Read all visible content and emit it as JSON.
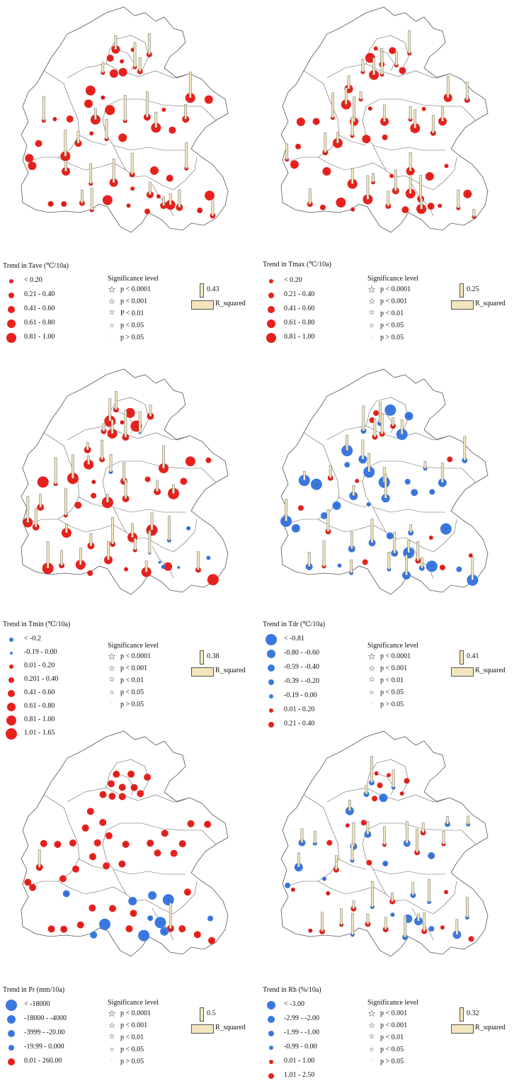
{
  "colors": {
    "warm": "#e8211d",
    "cool": "#3a78e0",
    "bar_fill": "#f3e6bd"
  },
  "panels": [
    {
      "id": "tave",
      "legend_title": "Trend in Tave (℃/10a)",
      "classes": [
        {
          "label": "< 0.20",
          "color": "warm",
          "r": 3
        },
        {
          "label": "0.21 - 0.40",
          "color": "warm",
          "r": 4
        },
        {
          "label": "0.41 - 0.60",
          "color": "warm",
          "r": 5
        },
        {
          "label": "0.61 - 0.80",
          "color": "warm",
          "r": 6
        },
        {
          "label": "0.81 - 1.00",
          "color": "warm",
          "r": 7
        }
      ],
      "significance_title": "Significance level",
      "significance": [
        "p < 0.0001",
        "p < 0.001",
        "P < 0.01",
        "p < 0.05",
        "p > 0.05"
      ],
      "r2_value": "0.43",
      "r2_label": "R_squared"
    },
    {
      "id": "tmax",
      "legend_title": "Trend in Tmax (℃/10a)",
      "classes": [
        {
          "label": "< 0.20",
          "color": "warm",
          "r": 3
        },
        {
          "label": "0.21 - 0.40",
          "color": "warm",
          "r": 4
        },
        {
          "label": "0.41 - 0.60",
          "color": "warm",
          "r": 5
        },
        {
          "label": "0.61 - 0.80",
          "color": "warm",
          "r": 6
        },
        {
          "label": "0.81 - 1.00",
          "color": "warm",
          "r": 7
        }
      ],
      "significance_title": "Significance level",
      "significance": [
        "p < 0.0001",
        "p < 0.001",
        "p < 0.01",
        "p < 0.05",
        "p > 0.05"
      ],
      "r2_value": "0.25",
      "r2_label": "R_squared"
    },
    {
      "id": "tmin",
      "legend_title": "Trend in Tmin (℃/10a)",
      "classes": [
        {
          "label": "< -0.2",
          "color": "cool",
          "r": 3
        },
        {
          "label": "-0.19 - 0.00",
          "color": "cool",
          "r": 2
        },
        {
          "label": "0.01 - 0.20",
          "color": "warm",
          "r": 3
        },
        {
          "label": "0.201 - 0.40",
          "color": "warm",
          "r": 4
        },
        {
          "label": "0.41 - 0.60",
          "color": "warm",
          "r": 5
        },
        {
          "label": "0.61 - 0.80",
          "color": "warm",
          "r": 6
        },
        {
          "label": "0.81 - 1.00",
          "color": "warm",
          "r": 7
        },
        {
          "label": "1.01 - 1.65",
          "color": "warm",
          "r": 8
        }
      ],
      "significance_title": "Significance level",
      "significance": [
        "p < 0.0001",
        "p < 0.001",
        "p < 0.01",
        "p < 0.05",
        "p >  0.05"
      ],
      "r2_value": "0.38",
      "r2_label": "R_squared"
    },
    {
      "id": "tdr",
      "legend_title": "Trend in Tdr (℃/10a)",
      "classes": [
        {
          "label": "< -0.81",
          "color": "cool",
          "r": 8
        },
        {
          "label": "-0.80 - -0.60",
          "color": "cool",
          "r": 6
        },
        {
          "label": "-0.59 - -0.40",
          "color": "cool",
          "r": 5
        },
        {
          "label": "-0.39 - -0.20",
          "color": "cool",
          "r": 4
        },
        {
          "label": "-0.19 - 0.00",
          "color": "cool",
          "r": 3
        },
        {
          "label": "0.01 - 0.20",
          "color": "warm",
          "r": 3
        },
        {
          "label": "0.21 - 0.40",
          "color": "warm",
          "r": 4
        }
      ],
      "significance_title": "Significance level",
      "significance": [
        "p < 0.0001",
        "p < 0.001",
        "p < 0.01",
        "p < 0.05",
        "p > 0.05"
      ],
      "r2_value": "0.41",
      "r2_label": "R_squared"
    },
    {
      "id": "pr",
      "legend_title": "Trend in Pr  (mm/10a)",
      "classes": [
        {
          "label": "< -18000",
          "color": "cool",
          "r": 8
        },
        {
          "label": "-18000 - -4000",
          "color": "cool",
          "r": 6
        },
        {
          "label": "-3999 - -20.00",
          "color": "cool",
          "r": 5
        },
        {
          "label": "-19.99 - 0.000",
          "color": "cool",
          "r": 4
        },
        {
          "label": "0.01 - 260.00",
          "color": "warm",
          "r": 5
        }
      ],
      "significance_title": "Significance level",
      "significance": [
        "p < 0.0001",
        "p < 0.001",
        "p < 0.01",
        "p < 0.05",
        "p > 0.05"
      ],
      "r2_value": "0.5",
      "r2_label": "R_squared"
    },
    {
      "id": "rh",
      "legend_title": "Trend in Rh  (%/10a)",
      "classes": [
        {
          "label": "< -3.00",
          "color": "cool",
          "r": 6
        },
        {
          "label": "-2.99 - -2.00",
          "color": "cool",
          "r": 5
        },
        {
          "label": "-1.99 - -1.00",
          "color": "cool",
          "r": 4
        },
        {
          "label": "-0.99 - 0.00",
          "color": "cool",
          "r": 3
        },
        {
          "label": "0.01 - 1.00",
          "color": "warm",
          "r": 3
        },
        {
          "label": "1.01 - 2.50",
          "color": "warm",
          "r": 4
        }
      ],
      "significance_title": "Significance level",
      "significance": [
        "p < 0.001",
        "p < 0.001",
        "p < 0.01",
        "p < 0.05",
        "p > 0.05"
      ],
      "r2_value": "0.32",
      "r2_label": "R_squared"
    }
  ]
}
